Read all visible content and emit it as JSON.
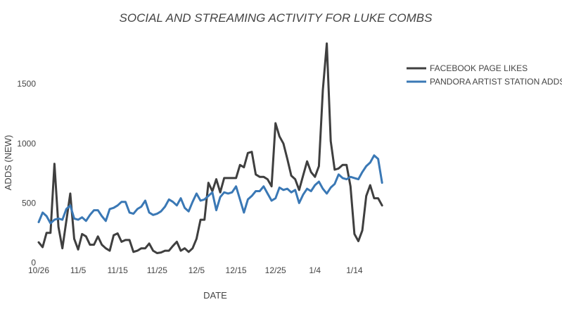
{
  "chart_data": {
    "type": "line",
    "title": "SOCIAL AND STREAMING ACTIVITY FOR LUKE COMBS",
    "xlabel": "DATE",
    "ylabel": "ADDS (NEW)",
    "x_tick_labels": [
      "10/26",
      "11/5",
      "11/15",
      "11/25",
      "12/5",
      "12/15",
      "12/25",
      "1/4",
      "1/14"
    ],
    "x_tick_days": [
      0,
      10,
      20,
      30,
      40,
      50,
      60,
      70,
      80
    ],
    "y_ticks": [
      0,
      500,
      1000,
      1500
    ],
    "xlim": [
      0,
      90
    ],
    "ylim": [
      0,
      1850
    ],
    "legend_position": "top-right",
    "series": [
      {
        "name": "FACEBOOK PAGE LIKES",
        "color": "#3f3f3f",
        "values": [
          170,
          130,
          250,
          250,
          830,
          300,
          120,
          350,
          580,
          200,
          110,
          240,
          220,
          150,
          150,
          220,
          150,
          120,
          100,
          230,
          245,
          175,
          190,
          190,
          90,
          100,
          120,
          120,
          160,
          100,
          80,
          85,
          100,
          100,
          140,
          175,
          100,
          120,
          90,
          120,
          200,
          360,
          360,
          670,
          600,
          700,
          590,
          710,
          710,
          710,
          710,
          820,
          800,
          920,
          930,
          740,
          720,
          720,
          700,
          640,
          1170,
          1060,
          1000,
          870,
          730,
          700,
          610,
          730,
          850,
          760,
          720,
          810,
          1450,
          1840,
          1020,
          780,
          790,
          820,
          820,
          640,
          240,
          180,
          270,
          560,
          650,
          540,
          540,
          480
        ]
      },
      {
        "name": "PANDORA ARTIST STATION ADDS",
        "color": "#3a78b5",
        "values": [
          340,
          420,
          390,
          330,
          360,
          370,
          360,
          450,
          480,
          370,
          360,
          380,
          350,
          400,
          440,
          440,
          390,
          350,
          450,
          460,
          480,
          510,
          510,
          420,
          410,
          450,
          470,
          520,
          420,
          400,
          410,
          430,
          470,
          530,
          510,
          480,
          540,
          460,
          430,
          510,
          580,
          520,
          530,
          560,
          590,
          440,
          550,
          590,
          580,
          590,
          640,
          530,
          420,
          530,
          560,
          600,
          600,
          640,
          580,
          520,
          540,
          630,
          610,
          620,
          590,
          610,
          500,
          570,
          620,
          600,
          650,
          680,
          620,
          580,
          630,
          660,
          740,
          710,
          700,
          720,
          710,
          700,
          760,
          810,
          840,
          900,
          870,
          670
        ]
      }
    ]
  }
}
